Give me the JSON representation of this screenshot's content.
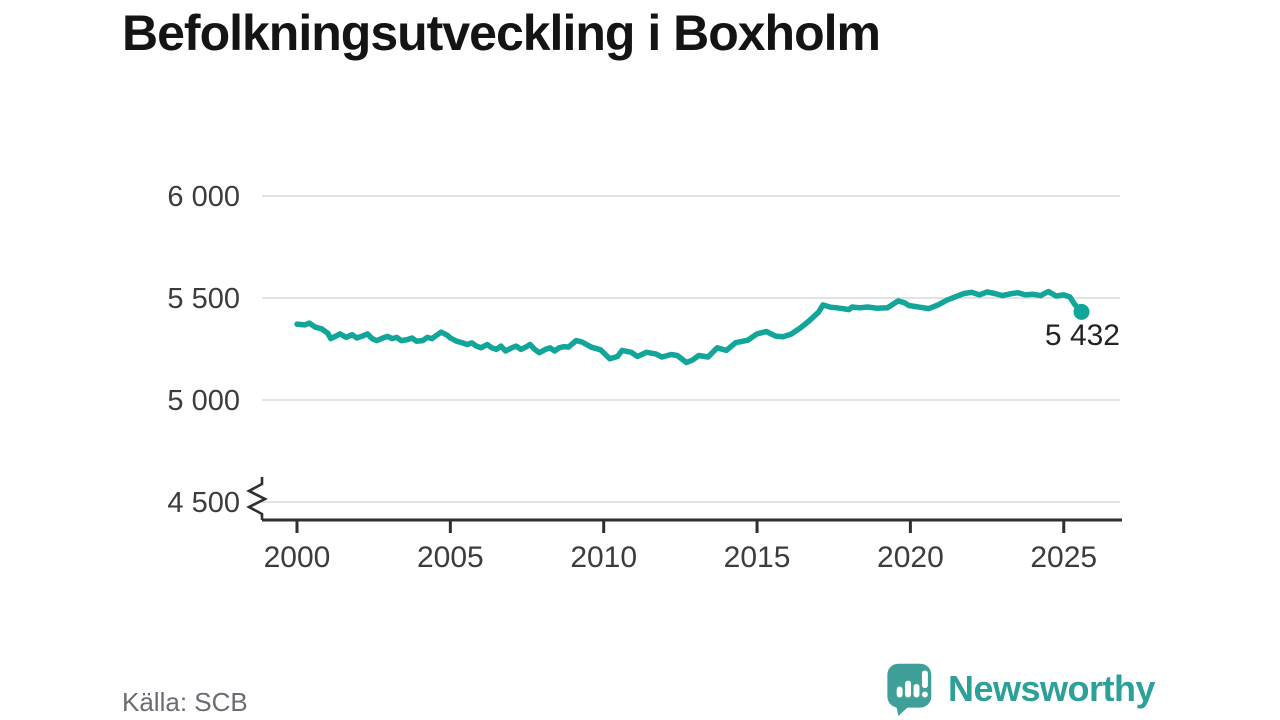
{
  "title": "Befolkningsutveckling i Boxholm",
  "source": "Källa: SCB",
  "branding": {
    "name": "Newsworthy",
    "icon_color": "#3f9f99",
    "text_color": "#2ca099"
  },
  "chart_data": {
    "type": "line",
    "title": "Befolkningsutveckling i Boxholm",
    "xlabel": "",
    "ylabel": "",
    "grid": "horizontal",
    "legend_position": "none",
    "axis_break_at_bottom": true,
    "ylim": [
      4500,
      6000
    ],
    "xlim": [
      1998.9,
      2026.9
    ],
    "y_ticks": [
      {
        "value": 6000,
        "label": "6 000"
      },
      {
        "value": 5500,
        "label": "5 500"
      },
      {
        "value": 5000,
        "label": "5 000"
      },
      {
        "value": 4500,
        "label": "4 500"
      }
    ],
    "x_ticks": [
      {
        "value": 2000,
        "label": "2000"
      },
      {
        "value": 2005,
        "label": "2005"
      },
      {
        "value": 2010,
        "label": "2010"
      },
      {
        "value": 2015,
        "label": "2015"
      },
      {
        "value": 2020,
        "label": "2020"
      },
      {
        "value": 2025,
        "label": "2025"
      }
    ],
    "end_label": "5 432",
    "end_value": 5432,
    "series": [
      {
        "name": "Befolkning",
        "color": "#12a69a",
        "points": [
          [
            2000.0,
            5372
          ],
          [
            2000.25,
            5368
          ],
          [
            2000.4,
            5377
          ],
          [
            2000.6,
            5357
          ],
          [
            2000.8,
            5349
          ],
          [
            2001.0,
            5328
          ],
          [
            2001.1,
            5301
          ],
          [
            2001.25,
            5312
          ],
          [
            2001.4,
            5324
          ],
          [
            2001.6,
            5307
          ],
          [
            2001.8,
            5320
          ],
          [
            2001.95,
            5304
          ],
          [
            2002.1,
            5312
          ],
          [
            2002.3,
            5324
          ],
          [
            2002.45,
            5301
          ],
          [
            2002.6,
            5291
          ],
          [
            2002.8,
            5304
          ],
          [
            2002.95,
            5312
          ],
          [
            2003.1,
            5301
          ],
          [
            2003.25,
            5307
          ],
          [
            2003.4,
            5291
          ],
          [
            2003.6,
            5296
          ],
          [
            2003.75,
            5304
          ],
          [
            2003.9,
            5288
          ],
          [
            2004.1,
            5291
          ],
          [
            2004.25,
            5307
          ],
          [
            2004.4,
            5301
          ],
          [
            2004.55,
            5317
          ],
          [
            2004.7,
            5333
          ],
          [
            2004.9,
            5317
          ],
          [
            2005.0,
            5304
          ],
          [
            2005.2,
            5288
          ],
          [
            2005.4,
            5280
          ],
          [
            2005.55,
            5272
          ],
          [
            2005.7,
            5280
          ],
          [
            2005.85,
            5264
          ],
          [
            2006.0,
            5256
          ],
          [
            2006.2,
            5272
          ],
          [
            2006.35,
            5256
          ],
          [
            2006.5,
            5248
          ],
          [
            2006.65,
            5264
          ],
          [
            2006.8,
            5240
          ],
          [
            2007.0,
            5256
          ],
          [
            2007.15,
            5264
          ],
          [
            2007.3,
            5248
          ],
          [
            2007.45,
            5259
          ],
          [
            2007.6,
            5272
          ],
          [
            2007.75,
            5248
          ],
          [
            2007.9,
            5232
          ],
          [
            2008.1,
            5248
          ],
          [
            2008.25,
            5256
          ],
          [
            2008.4,
            5240
          ],
          [
            2008.55,
            5256
          ],
          [
            2008.7,
            5262
          ],
          [
            2008.85,
            5259
          ],
          [
            2009.1,
            5291
          ],
          [
            2009.3,
            5284
          ],
          [
            2009.6,
            5259
          ],
          [
            2009.9,
            5246
          ],
          [
            2010.2,
            5202
          ],
          [
            2010.45,
            5213
          ],
          [
            2010.6,
            5243
          ],
          [
            2010.9,
            5234
          ],
          [
            2011.1,
            5213
          ],
          [
            2011.4,
            5234
          ],
          [
            2011.7,
            5226
          ],
          [
            2011.9,
            5211
          ],
          [
            2012.2,
            5223
          ],
          [
            2012.4,
            5218
          ],
          [
            2012.7,
            5184
          ],
          [
            2012.9,
            5196
          ],
          [
            2013.1,
            5218
          ],
          [
            2013.4,
            5211
          ],
          [
            2013.7,
            5256
          ],
          [
            2014.0,
            5243
          ],
          [
            2014.3,
            5281
          ],
          [
            2014.7,
            5293
          ],
          [
            2015.0,
            5324
          ],
          [
            2015.3,
            5336
          ],
          [
            2015.6,
            5313
          ],
          [
            2015.85,
            5310
          ],
          [
            2016.1,
            5322
          ],
          [
            2016.4,
            5352
          ],
          [
            2016.7,
            5388
          ],
          [
            2017.0,
            5430
          ],
          [
            2017.15,
            5466
          ],
          [
            2017.4,
            5455
          ],
          [
            2017.6,
            5452
          ],
          [
            2017.8,
            5448
          ],
          [
            2018.0,
            5443
          ],
          [
            2018.1,
            5456
          ],
          [
            2018.35,
            5452
          ],
          [
            2018.6,
            5456
          ],
          [
            2018.9,
            5450
          ],
          [
            2019.25,
            5452
          ],
          [
            2019.6,
            5486
          ],
          [
            2019.8,
            5477
          ],
          [
            2019.95,
            5463
          ],
          [
            2020.3,
            5455
          ],
          [
            2020.6,
            5448
          ],
          [
            2020.9,
            5466
          ],
          [
            2021.2,
            5490
          ],
          [
            2021.5,
            5508
          ],
          [
            2021.75,
            5522
          ],
          [
            2022.0,
            5528
          ],
          [
            2022.25,
            5515
          ],
          [
            2022.5,
            5530
          ],
          [
            2022.75,
            5522
          ],
          [
            2023.0,
            5512
          ],
          [
            2023.25,
            5520
          ],
          [
            2023.5,
            5526
          ],
          [
            2023.75,
            5515
          ],
          [
            2024.0,
            5518
          ],
          [
            2024.25,
            5512
          ],
          [
            2024.5,
            5532
          ],
          [
            2024.75,
            5510
          ],
          [
            2025.0,
            5515
          ],
          [
            2025.2,
            5505
          ],
          [
            2025.35,
            5470
          ],
          [
            2025.5,
            5444
          ],
          [
            2025.58,
            5432
          ]
        ]
      }
    ]
  }
}
